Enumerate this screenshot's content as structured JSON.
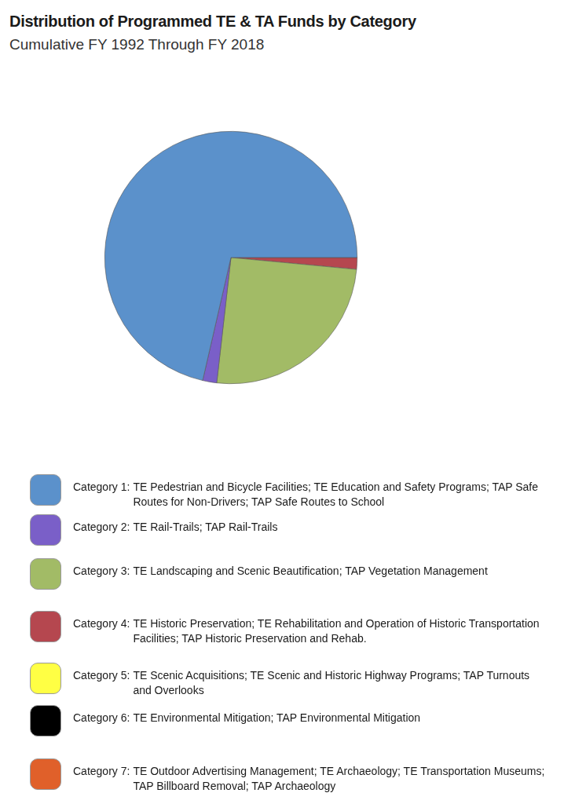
{
  "chart_data": {
    "type": "pie",
    "title": "Distribution of Programmed TE & TA Funds by Category",
    "subtitle": "Cumulative FY 1992 Through FY 2018",
    "categories": [
      "Category 1: TE Pedestrian and Bicycle Facilities; TE Education and Safety Programs; TAP Safe Routes for Non-Drivers; TAP Safe Routes to School",
      "Category 2: TE Rail-Trails; TAP Rail-Trails",
      "Category 3: TE Landscaping and Scenic Beautification; TAP Vegetation Management",
      "Category 4: TE Historic Preservation; TE Rehabilitation and Operation of Historic Transportation Facilities; TAP Historic Preservation and Rehab.",
      "Category 5: TE Scenic Acquisitions; TE Scenic and Historic Highway Programs; TAP Turnouts and Overlooks",
      "Category 6: TE Environmental Mitigation; TAP Environmental Mitigation",
      "Category 7: TE Outdoor Advertising Management; TE Archaeology; TE Transportation Museums; TAP Billboard Removal; TAP Archaeology"
    ],
    "values": [
      71.4,
      1.8,
      25.3,
      1.5,
      0,
      0,
      0
    ],
    "colors": [
      "#5b91cb",
      "#7a5fc8",
      "#a2bb66",
      "#b5474f",
      "#ffff44",
      "#000000",
      "#e0602a"
    ],
    "legend": "bottom"
  }
}
